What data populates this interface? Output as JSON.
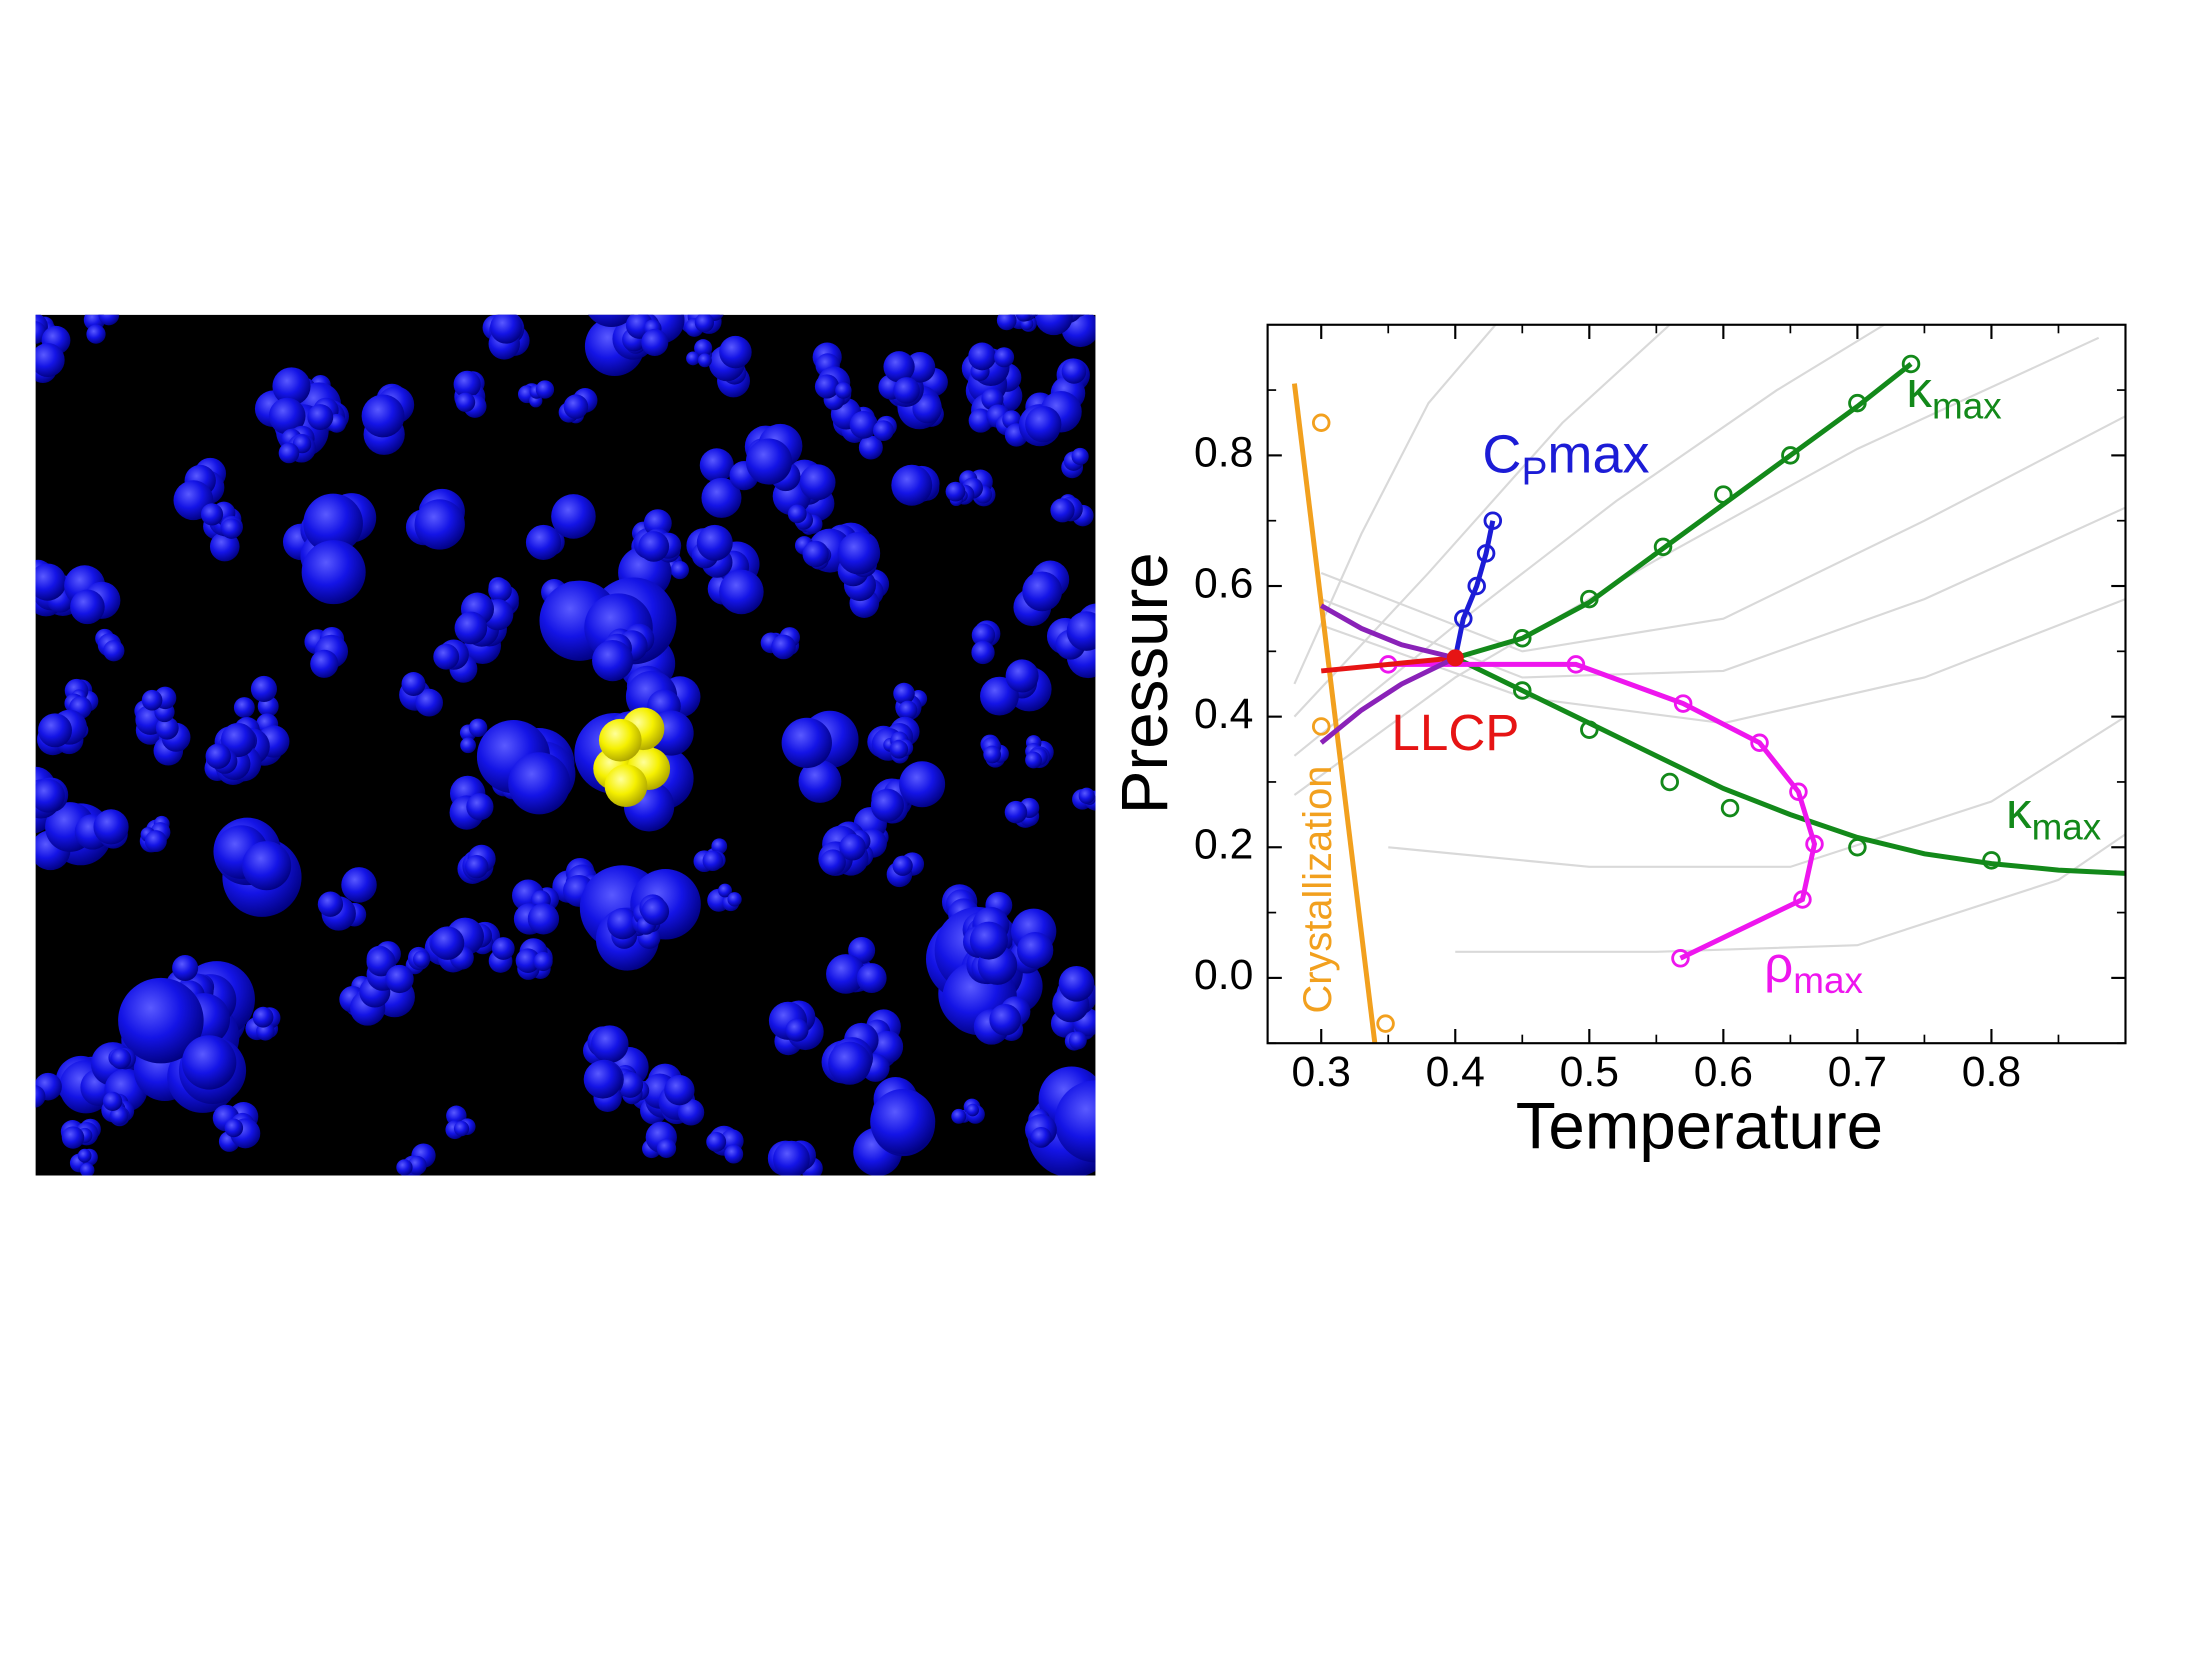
{
  "chart_data": {
    "type": "line",
    "x_label": "Temperature",
    "y_label": "Pressure",
    "xlim": [
      0.26,
      0.9
    ],
    "ylim": [
      -0.1,
      1.0
    ],
    "xticks": [
      0.3,
      0.4,
      0.5,
      0.6,
      0.7,
      0.8
    ],
    "yticks": [
      {
        "value": 0,
        "label": "0.0"
      },
      0.2,
      0.4,
      0.6,
      0.8
    ],
    "xminorticks": [
      0.35,
      0.45,
      0.55,
      0.65,
      0.75,
      0.85
    ],
    "yminorticks": [
      -0.1,
      0.1,
      0.3,
      0.5,
      0.7,
      0.9
    ],
    "background_curves": {
      "color": "#d9d9d9",
      "curves": [
        {
          "x": [
            0.28,
            0.33,
            0.38,
            0.43
          ],
          "values": [
            0.45,
            0.68,
            0.88,
            1.0
          ]
        },
        {
          "x": [
            0.28,
            0.38,
            0.48,
            0.56
          ],
          "values": [
            0.4,
            0.62,
            0.85,
            1.0
          ]
        },
        {
          "x": [
            0.28,
            0.4,
            0.52,
            0.64,
            0.72
          ],
          "values": [
            0.34,
            0.54,
            0.73,
            0.9,
            1.0
          ]
        },
        {
          "x": [
            0.28,
            0.4,
            0.55,
            0.7,
            0.88
          ],
          "values": [
            0.28,
            0.46,
            0.64,
            0.81,
            0.98
          ]
        },
        {
          "x": [
            0.3,
            0.45,
            0.6,
            0.75,
            0.9
          ],
          "values": [
            0.62,
            0.5,
            0.55,
            0.7,
            0.86
          ]
        },
        {
          "x": [
            0.3,
            0.45,
            0.6,
            0.75,
            0.9
          ],
          "values": [
            0.58,
            0.46,
            0.47,
            0.58,
            0.72
          ]
        },
        {
          "x": [
            0.3,
            0.45,
            0.6,
            0.75,
            0.9
          ],
          "values": [
            0.54,
            0.43,
            0.39,
            0.46,
            0.58
          ]
        },
        {
          "x": [
            0.35,
            0.5,
            0.65,
            0.8,
            0.9
          ],
          "values": [
            0.2,
            0.17,
            0.17,
            0.27,
            0.4
          ]
        },
        {
          "x": [
            0.4,
            0.55,
            0.7,
            0.85,
            0.9
          ],
          "values": [
            0.04,
            0.04,
            0.05,
            0.15,
            0.22
          ]
        }
      ]
    },
    "series": [
      {
        "color": "#f2a01e",
        "x": [
          0.3,
          0.3,
          0.348
        ],
        "values": [
          0.85,
          0.385,
          -0.07
        ],
        "line": {
          "x": [
            0.28,
            0.34
          ],
          "values": [
            0.91,
            -0.1
          ]
        }
      },
      {
        "color": "#1c1cd6",
        "x": [
          0.406,
          0.416,
          0.423,
          0.428
        ],
        "values": [
          0.55,
          0.6,
          0.65,
          0.7
        ],
        "line": {
          "x": [
            0.4,
            0.406,
            0.416,
            0.423,
            0.428
          ],
          "values": [
            0.49,
            0.55,
            0.6,
            0.65,
            0.7
          ]
        }
      },
      {
        "color": "#13891a",
        "x": [
          0.45,
          0.5,
          0.555,
          0.6,
          0.65,
          0.7,
          0.74
        ],
        "values": [
          0.52,
          0.58,
          0.66,
          0.74,
          0.8,
          0.88,
          0.94
        ],
        "line": {
          "x": [
            0.4,
            0.45,
            0.5,
            0.55,
            0.6,
            0.65,
            0.7,
            0.74
          ],
          "values": [
            0.49,
            0.52,
            0.575,
            0.65,
            0.725,
            0.8,
            0.875,
            0.94
          ]
        }
      },
      {
        "color": "#13891a",
        "x": [
          0.45,
          0.5,
          0.56,
          0.605,
          0.7,
          0.8
        ],
        "values": [
          0.44,
          0.38,
          0.3,
          0.26,
          0.2,
          0.18
        ],
        "line": {
          "x": [
            0.4,
            0.45,
            0.5,
            0.55,
            0.6,
            0.65,
            0.7,
            0.75,
            0.8,
            0.85,
            0.9
          ],
          "values": [
            0.49,
            0.44,
            0.39,
            0.34,
            0.29,
            0.25,
            0.215,
            0.19,
            0.175,
            0.165,
            0.16
          ]
        }
      },
      {
        "color": "#ee16ee",
        "x": [
          0.35,
          0.49,
          0.57,
          0.627,
          0.656,
          0.668,
          0.659,
          0.568
        ],
        "values": [
          0.48,
          0.48,
          0.42,
          0.36,
          0.285,
          0.205,
          0.12,
          0.03
        ]
      },
      {
        "color": "#e61414",
        "line": {
          "x": [
            0.3,
            0.4
          ],
          "values": [
            0.47,
            0.49
          ]
        }
      },
      {
        "color": "#8a22b8",
        "line": {
          "x": [
            0.3,
            0.33,
            0.36,
            0.4
          ],
          "values": [
            0.57,
            0.535,
            0.51,
            0.49
          ]
        }
      },
      {
        "color": "#8a22b8",
        "line": {
          "x": [
            0.3,
            0.33,
            0.36,
            0.4
          ],
          "values": [
            0.36,
            0.41,
            0.45,
            0.49
          ]
        }
      }
    ],
    "llcp_point": {
      "x": 0.4,
      "value": 0.49,
      "color": "#e61414"
    },
    "annotations": [
      {
        "text": "C",
        "sub": "P",
        "tail": "max",
        "color": "#1c1cd6"
      },
      {
        "text": "κ",
        "sub": "max",
        "color": "#13891a"
      },
      {
        "text": "κ",
        "sub": "max",
        "color": "#13891a"
      },
      {
        "text": "ρ",
        "sub": "max",
        "color": "#ee16ee"
      },
      {
        "text": "LLCP",
        "color": "#e61414"
      },
      {
        "text": "Crystallization",
        "color": "#f2a01e"
      }
    ]
  }
}
